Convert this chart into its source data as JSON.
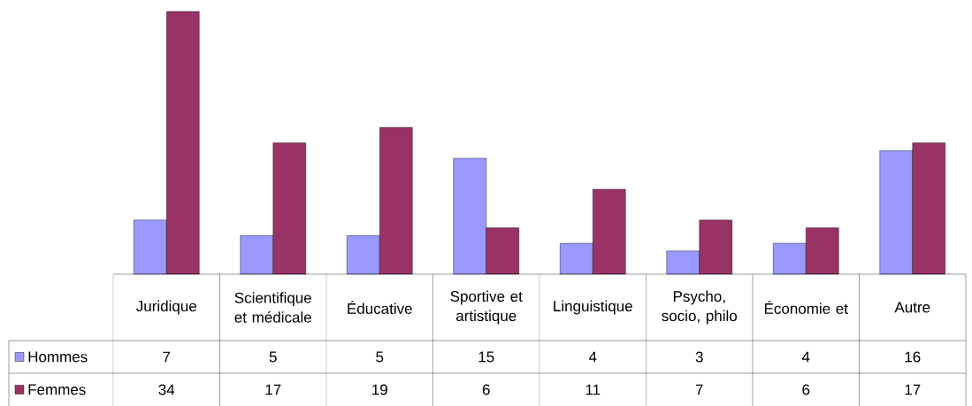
{
  "chart_data": {
    "type": "bar",
    "categories": [
      "Juridique",
      "Scientifique et médicale",
      "Éducative",
      "Sportive et artistique",
      "Linguistique",
      "Psycho, socio, philo",
      "Économie et",
      "Autre"
    ],
    "series": [
      {
        "name": "Hommes",
        "color": "#9999ff",
        "values": [
          7,
          5,
          5,
          15,
          4,
          3,
          4,
          16
        ]
      },
      {
        "name": "Femmes",
        "color": "#993366",
        "values": [
          34,
          17,
          19,
          6,
          11,
          7,
          6,
          17
        ]
      }
    ],
    "data_labels": true,
    "legend": "bottom left"
  }
}
